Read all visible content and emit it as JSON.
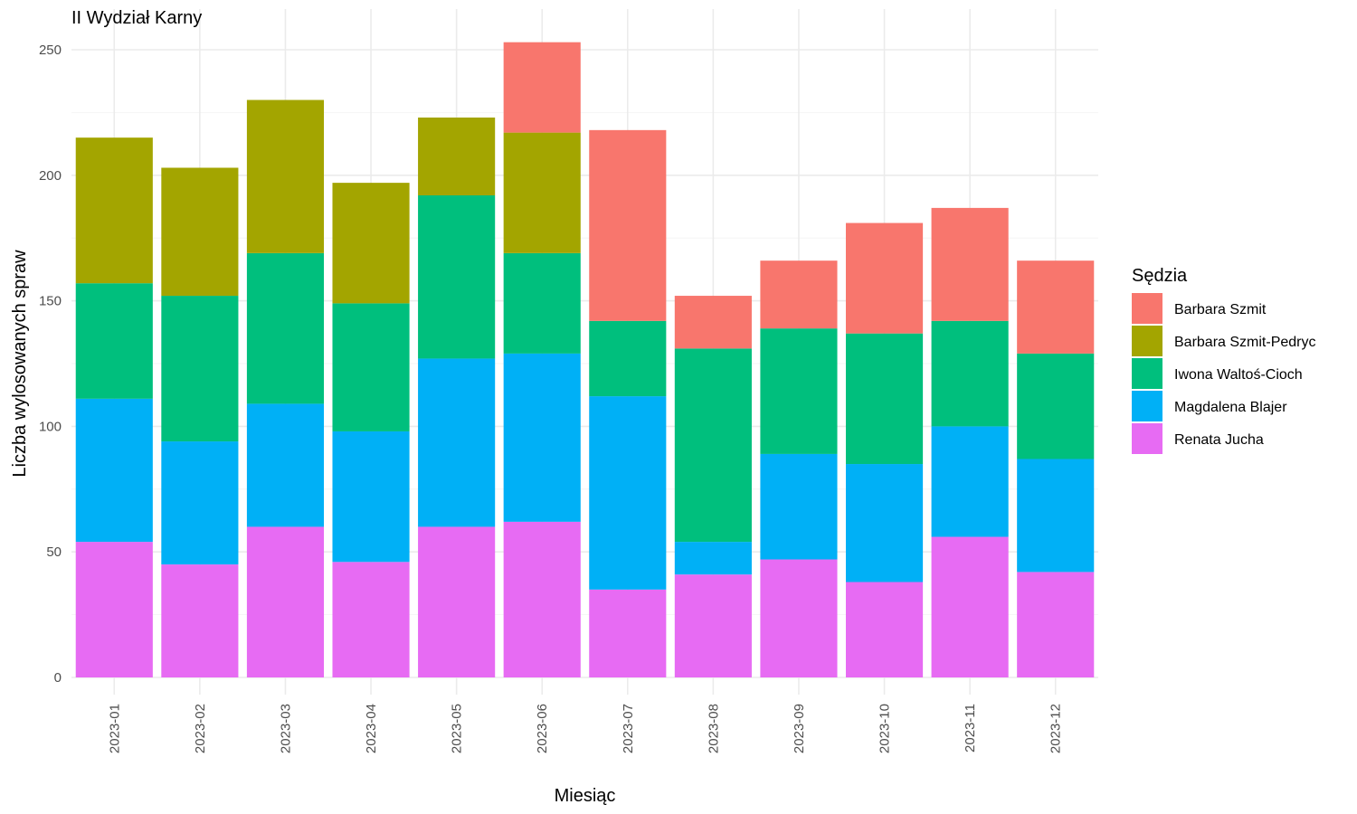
{
  "chart_data": {
    "type": "bar",
    "stacked": true,
    "title": "II Wydział Karny",
    "xlabel": "Miesiąc",
    "ylabel": "Liczba wylosowanych spraw",
    "ylim": [
      0,
      260
    ],
    "yticks": [
      0,
      50,
      100,
      150,
      200,
      250
    ],
    "grid": true,
    "legend": {
      "title": "Sędzia",
      "position": "right"
    },
    "categories": [
      "2023-01",
      "2023-02",
      "2023-03",
      "2023-04",
      "2023-05",
      "2023-06",
      "2023-07",
      "2023-08",
      "2023-09",
      "2023-10",
      "2023-11",
      "2023-12"
    ],
    "series": [
      {
        "name": "Renata Jucha",
        "color": "#e76bf3",
        "values": [
          54,
          45,
          60,
          46,
          60,
          62,
          35,
          41,
          47,
          38,
          56,
          42
        ]
      },
      {
        "name": "Magdalena Blajer",
        "color": "#00b0f6",
        "values": [
          57,
          49,
          49,
          52,
          67,
          67,
          77,
          13,
          42,
          47,
          44,
          45
        ]
      },
      {
        "name": "Iwona Waltoś-Cioch",
        "color": "#00bf7d",
        "values": [
          46,
          58,
          60,
          51,
          65,
          40,
          30,
          77,
          50,
          52,
          42,
          42
        ]
      },
      {
        "name": "Barbara Szmit-Pedryc",
        "color": "#a3a500",
        "values": [
          58,
          51,
          61,
          48,
          31,
          48,
          0,
          0,
          0,
          0,
          0,
          0
        ]
      },
      {
        "name": "Barbara Szmit",
        "color": "#f8766d",
        "values": [
          0,
          0,
          0,
          0,
          0,
          36,
          76,
          21,
          27,
          44,
          45,
          37
        ]
      }
    ],
    "legend_order": [
      "Barbara Szmit",
      "Barbara Szmit-Pedryc",
      "Iwona Waltoś-Cioch",
      "Magdalena Blajer",
      "Renata Jucha"
    ]
  }
}
